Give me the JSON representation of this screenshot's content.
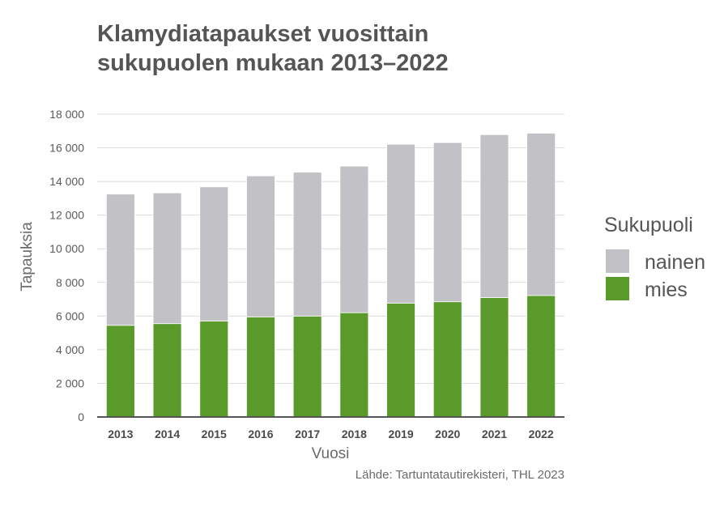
{
  "chart_data": {
    "type": "bar",
    "stacked": true,
    "title_lines": [
      "Klamydiatapaukset vuosittain",
      "sukupuolen mukaan 2013–2022"
    ],
    "xlabel": "Vuosi",
    "ylabel": "Tapauksia",
    "ylim": [
      0,
      18000
    ],
    "yticks": [
      0,
      2000,
      4000,
      6000,
      8000,
      10000,
      12000,
      14000,
      16000,
      18000
    ],
    "ytick_labels": [
      "0",
      "2 000",
      "4 000",
      "6 000",
      "8 000",
      "10 000",
      "12 000",
      "14 000",
      "16 000",
      "18 000"
    ],
    "grid": true,
    "categories": [
      "2013",
      "2014",
      "2015",
      "2016",
      "2017",
      "2018",
      "2019",
      "2020",
      "2021",
      "2022"
    ],
    "series": [
      {
        "name": "mies",
        "color": "#5a9a2a",
        "values": [
          5450,
          5550,
          5700,
          5950,
          6000,
          6200,
          6770,
          6850,
          7100,
          7220
        ]
      },
      {
        "name": "nainen",
        "color": "#c2c2c6",
        "values": [
          7800,
          7770,
          7980,
          8380,
          8550,
          8710,
          9440,
          9460,
          9680,
          9650
        ]
      }
    ],
    "legend": {
      "title": "Sukupuoli",
      "placement": "right",
      "order": [
        "nainen",
        "mies"
      ]
    },
    "source": "Lähde: Tartuntatautirekisteri, THL 2023"
  }
}
